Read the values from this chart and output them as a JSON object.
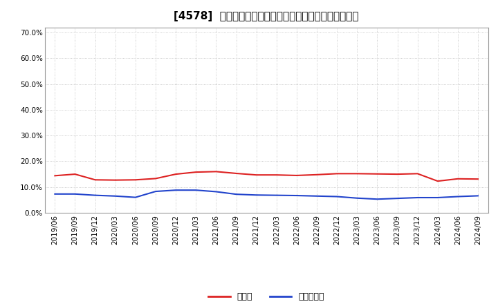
{
  "title": "[4578]  現預金、有利子負債の総資産に対する比率の推移",
  "x_labels": [
    "2019/06",
    "2019/09",
    "2019/12",
    "2020/03",
    "2020/06",
    "2020/09",
    "2020/12",
    "2021/03",
    "2021/06",
    "2021/09",
    "2021/12",
    "2022/03",
    "2022/06",
    "2022/09",
    "2022/12",
    "2023/03",
    "2023/06",
    "2023/09",
    "2023/12",
    "2024/03",
    "2024/06",
    "2024/09"
  ],
  "cash": [
    0.144,
    0.15,
    0.128,
    0.127,
    0.128,
    0.133,
    0.15,
    0.158,
    0.16,
    0.153,
    0.147,
    0.147,
    0.145,
    0.148,
    0.152,
    0.152,
    0.151,
    0.15,
    0.152,
    0.123,
    0.132,
    0.131
  ],
  "debt": [
    0.073,
    0.073,
    0.068,
    0.065,
    0.06,
    0.083,
    0.088,
    0.088,
    0.082,
    0.072,
    0.069,
    0.068,
    0.067,
    0.065,
    0.063,
    0.057,
    0.053,
    0.056,
    0.059,
    0.059,
    0.063,
    0.066
  ],
  "cash_color": "#dd2222",
  "debt_color": "#2244cc",
  "bg_color": "#ffffff",
  "plot_bg_color": "#ffffff",
  "grid_color": "#bbbbbb",
  "ylim": [
    0.0,
    0.72
  ],
  "yticks": [
    0.0,
    0.1,
    0.2,
    0.3,
    0.4,
    0.5,
    0.6,
    0.7
  ],
  "legend_cash": "現預金",
  "legend_debt": "有利子負債",
  "title_fontsize": 11,
  "legend_fontsize": 9,
  "tick_fontsize": 7.5
}
